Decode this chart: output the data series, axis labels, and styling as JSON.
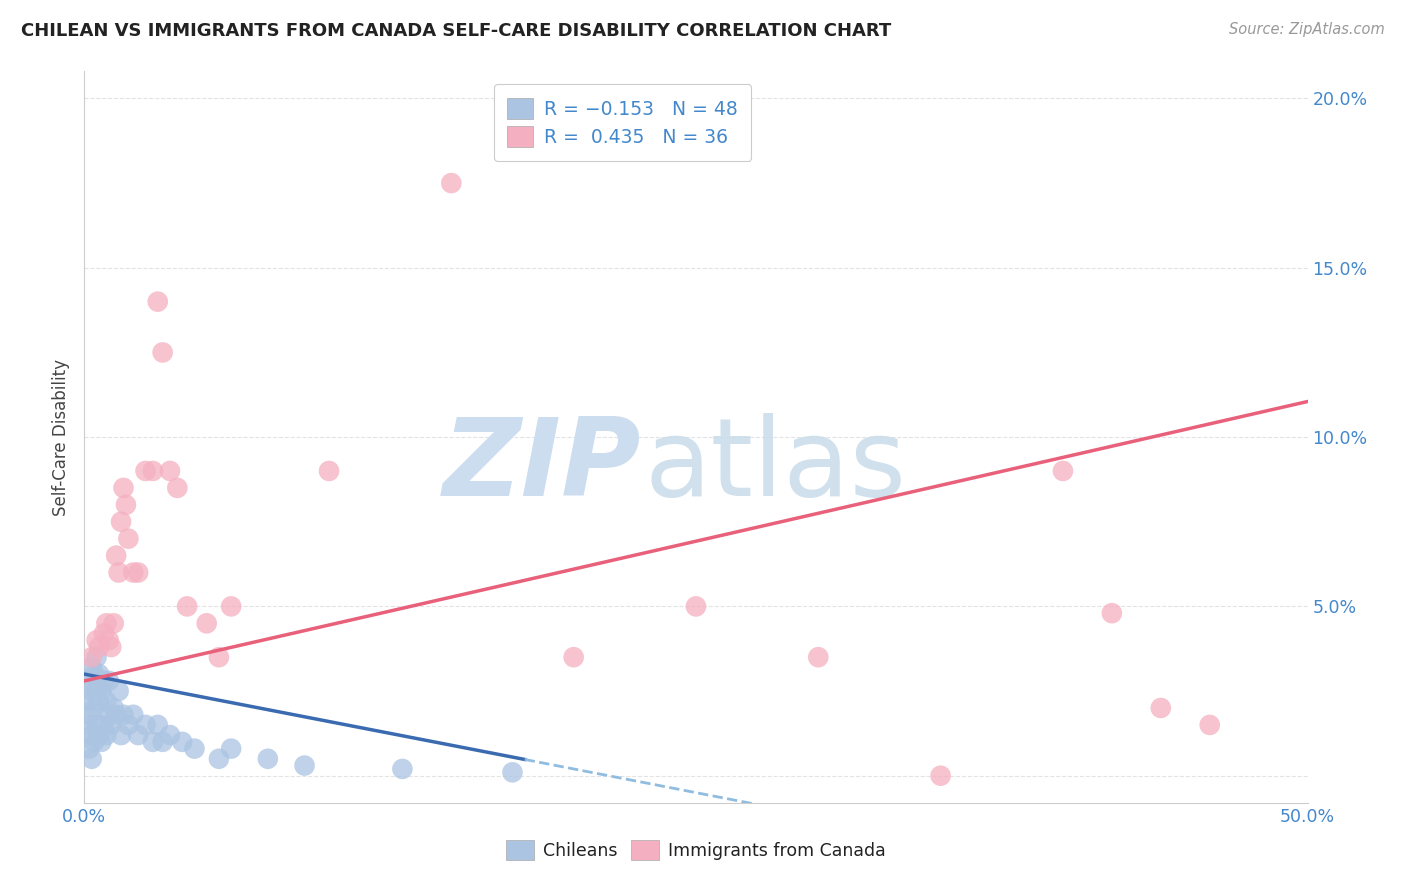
{
  "title": "CHILEAN VS IMMIGRANTS FROM CANADA SELF-CARE DISABILITY CORRELATION CHART",
  "source": "Source: ZipAtlas.com",
  "ylabel": "Self-Care Disability",
  "xlim": [
    0.0,
    0.5
  ],
  "ylim": [
    -0.008,
    0.208
  ],
  "ytick_vals": [
    0.0,
    0.05,
    0.1,
    0.15,
    0.2
  ],
  "ytick_labels": [
    "",
    "5.0%",
    "10.0%",
    "15.0%",
    "20.0%"
  ],
  "xtick_vals": [
    0.0,
    0.1,
    0.2,
    0.3,
    0.4,
    0.5
  ],
  "xtick_labels": [
    "0.0%",
    "",
    "",
    "",
    "",
    "50.0%"
  ],
  "chilean_color": "#aac4e2",
  "canadian_color": "#f4afc0",
  "blue_line_color": "#3a6ab0",
  "pink_line_color": "#e8607a",
  "dashed_line_color": "#90bce0",
  "background_color": "#ffffff",
  "grid_color": "#e0e0e0",
  "ch_x": [
    0.001,
    0.001,
    0.002,
    0.002,
    0.002,
    0.003,
    0.003,
    0.003,
    0.003,
    0.004,
    0.004,
    0.004,
    0.005,
    0.005,
    0.005,
    0.006,
    0.006,
    0.006,
    0.007,
    0.007,
    0.008,
    0.008,
    0.009,
    0.009,
    0.01,
    0.01,
    0.011,
    0.012,
    0.013,
    0.014,
    0.015,
    0.016,
    0.018,
    0.02,
    0.022,
    0.025,
    0.028,
    0.03,
    0.032,
    0.035,
    0.04,
    0.045,
    0.055,
    0.06,
    0.075,
    0.09,
    0.13,
    0.175
  ],
  "ch_y": [
    0.015,
    0.022,
    0.018,
    0.028,
    0.008,
    0.012,
    0.025,
    0.032,
    0.005,
    0.01,
    0.02,
    0.03,
    0.015,
    0.025,
    0.035,
    0.012,
    0.022,
    0.03,
    0.01,
    0.025,
    0.015,
    0.028,
    0.012,
    0.022,
    0.018,
    0.028,
    0.015,
    0.02,
    0.018,
    0.025,
    0.012,
    0.018,
    0.015,
    0.018,
    0.012,
    0.015,
    0.01,
    0.015,
    0.01,
    0.012,
    0.01,
    0.008,
    0.005,
    0.008,
    0.005,
    0.003,
    0.002,
    0.001
  ],
  "ca_x": [
    0.003,
    0.005,
    0.006,
    0.008,
    0.009,
    0.01,
    0.011,
    0.012,
    0.013,
    0.014,
    0.015,
    0.016,
    0.017,
    0.018,
    0.02,
    0.022,
    0.025,
    0.028,
    0.03,
    0.032,
    0.035,
    0.038,
    0.042,
    0.05,
    0.055,
    0.06,
    0.1,
    0.15,
    0.2,
    0.25,
    0.3,
    0.35,
    0.4,
    0.42,
    0.44,
    0.46
  ],
  "ca_y": [
    0.035,
    0.04,
    0.038,
    0.042,
    0.045,
    0.04,
    0.038,
    0.045,
    0.065,
    0.06,
    0.075,
    0.085,
    0.08,
    0.07,
    0.06,
    0.06,
    0.09,
    0.09,
    0.14,
    0.125,
    0.09,
    0.085,
    0.05,
    0.045,
    0.035,
    0.05,
    0.09,
    0.175,
    0.035,
    0.05,
    0.035,
    0.0,
    0.09,
    0.048,
    0.02,
    0.015
  ],
  "ch_line_x0": 0.0,
  "ch_line_x_solid_end": 0.18,
  "ch_line_x_dash_end": 0.5,
  "ch_line_y0": 0.03,
  "ch_line_slope": -0.14,
  "ca_line_y0": 0.028,
  "ca_line_slope": 0.165
}
